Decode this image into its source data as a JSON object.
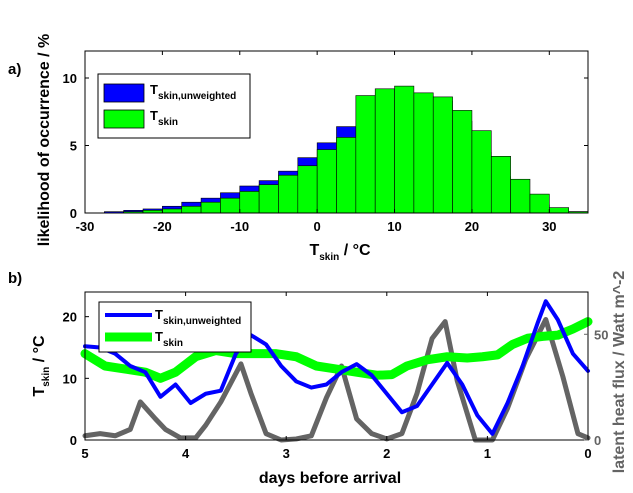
{
  "chart_data": [
    {
      "panel_label": "a)",
      "type": "bar",
      "ylabel": "likelihood of occurrence / %",
      "xlabel": {
        "main": "T",
        "sub": "skin",
        "rest": " / °C"
      },
      "xlim": [
        -30,
        35
      ],
      "ylim": [
        0,
        12
      ],
      "xticks": [
        "-30",
        "-20",
        "-10",
        "0",
        "10",
        "20",
        "30"
      ],
      "xtick_values": [
        -30,
        -20,
        -10,
        0,
        10,
        20,
        30
      ],
      "yticks": [
        "0",
        "5",
        "10"
      ],
      "ytick_values": [
        0,
        5,
        10
      ],
      "bin_width": 2.5,
      "bin_left_edges": [
        -27.5,
        -25,
        -22.5,
        -20,
        -17.5,
        -15,
        -12.5,
        -10,
        -7.5,
        -5,
        -2.5,
        0,
        2.5,
        5,
        7.5,
        10,
        12.5,
        15,
        17.5,
        20,
        22.5,
        25,
        27.5,
        30,
        32.5
      ],
      "series": [
        {
          "legend_main": "T",
          "legend_sub": "skin,unweighted",
          "color": "#0000ff",
          "values": [
            0.1,
            0.2,
            0.3,
            0.5,
            0.8,
            1.1,
            1.5,
            2.0,
            2.4,
            3.1,
            4.1,
            5.2,
            6.4,
            5.3,
            7.5,
            8.4,
            8.7,
            8.3,
            6.8,
            4.5,
            2.7,
            1.3,
            0.6,
            0.2,
            0.1
          ]
        },
        {
          "legend_main": "T",
          "legend_sub": "skin",
          "color": "#00ff00",
          "values": [
            0.0,
            0.1,
            0.2,
            0.3,
            0.5,
            0.8,
            1.1,
            1.6,
            2.1,
            2.8,
            3.5,
            4.7,
            5.6,
            8.7,
            9.2,
            9.4,
            8.9,
            8.6,
            7.6,
            6.1,
            4.2,
            2.5,
            1.4,
            0.4,
            0.1
          ]
        }
      ]
    },
    {
      "panel_label": "b)",
      "type": "line",
      "ylabel": {
        "main": "T",
        "sub": "skin",
        "rest": " / °C"
      },
      "y2label": "latent heat flux / Watt m^-2",
      "xlabel": "days before arrival",
      "xlim": [
        5,
        0
      ],
      "ylim": [
        0,
        24
      ],
      "y2lim": [
        0,
        70
      ],
      "xticks": [
        "5",
        "4",
        "3",
        "2",
        "1",
        "0"
      ],
      "xtick_values": [
        5,
        4,
        3,
        2,
        1,
        0
      ],
      "yticks": [
        "0",
        "10",
        "20"
      ],
      "ytick_values": [
        0,
        10,
        20
      ],
      "y2ticks": [
        "0",
        "50"
      ],
      "y2tick_values": [
        0,
        50
      ],
      "series": [
        {
          "legend_main": "T",
          "legend_sub": "skin,unweighted",
          "color": "#0000ff",
          "axis": "left",
          "x": [
            5,
            4.85,
            4.7,
            4.55,
            4.4,
            4.25,
            4.1,
            3.95,
            3.8,
            3.65,
            3.5,
            3.35,
            3.2,
            3.05,
            2.9,
            2.75,
            2.6,
            2.45,
            2.3,
            2.15,
            2.0,
            1.85,
            1.7,
            1.55,
            1.4,
            1.25,
            1.1,
            0.95,
            0.8,
            0.65,
            0.5,
            0.42,
            0.3,
            0.15,
            0.0
          ],
          "y": [
            15.2,
            15.0,
            14.0,
            12.0,
            11.0,
            7.0,
            9.0,
            6.0,
            7.5,
            8.0,
            14.0,
            17.0,
            15.5,
            12.0,
            9.5,
            8.5,
            9.0,
            11.0,
            12.3,
            10.5,
            7.5,
            4.5,
            5.5,
            9.0,
            12.5,
            9.0,
            4.0,
            1.0,
            6.0,
            12.0,
            19.0,
            22.5,
            19.5,
            14.0,
            11.2
          ]
        },
        {
          "legend_main": "T",
          "legend_sub": "skin",
          "color": "#00ff00",
          "axis": "left",
          "x": [
            5,
            4.8,
            4.6,
            4.4,
            4.25,
            4.1,
            3.9,
            3.7,
            3.5,
            3.3,
            3.1,
            2.9,
            2.7,
            2.5,
            2.3,
            2.1,
            1.95,
            1.8,
            1.6,
            1.4,
            1.2,
            1.05,
            0.9,
            0.75,
            0.6,
            0.45,
            0.3,
            0.15,
            0.0
          ],
          "y": [
            14.0,
            12.0,
            11.5,
            11.0,
            10.0,
            11.0,
            13.5,
            14.5,
            14.0,
            14.0,
            14.0,
            13.5,
            12.0,
            11.5,
            11.0,
            10.5,
            10.6,
            12.0,
            13.0,
            13.5,
            13.3,
            13.5,
            13.8,
            15.5,
            16.5,
            16.8,
            17.0,
            18.0,
            19.2
          ]
        },
        {
          "legend_main": "",
          "legend_sub": "",
          "color": "#646464",
          "axis": "right",
          "x": [
            5,
            4.85,
            4.7,
            4.55,
            4.45,
            4.3,
            4.2,
            4.05,
            3.9,
            3.8,
            3.65,
            3.45,
            3.35,
            3.2,
            3.05,
            2.9,
            2.75,
            2.6,
            2.45,
            2.3,
            2.15,
            2.0,
            1.85,
            1.7,
            1.55,
            1.42,
            1.3,
            1.12,
            0.95,
            0.8,
            0.62,
            0.42,
            0.25,
            0.1,
            0.0
          ],
          "y": [
            2.0,
            3.0,
            2.0,
            5.0,
            18.0,
            10.0,
            5.0,
            1.0,
            1.0,
            7.0,
            18.0,
            36.0,
            22.0,
            3.0,
            0.0,
            0.5,
            2.0,
            20.0,
            35.0,
            10.0,
            3.0,
            0.5,
            3.0,
            22.0,
            48.0,
            56.0,
            28.0,
            0.0,
            0.0,
            15.0,
            38.0,
            57.0,
            30.0,
            3.0,
            1.0
          ]
        }
      ]
    }
  ]
}
